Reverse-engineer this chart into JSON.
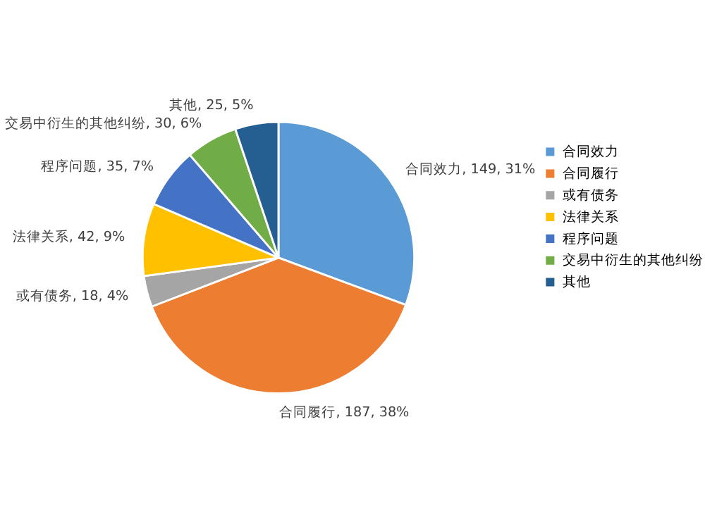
{
  "chart_data": {
    "type": "pie",
    "categories": [
      "合同效力",
      "合同履行",
      "或有债务",
      "法律关系",
      "程序问题",
      "交易中衍生的其他纠纷",
      "其他"
    ],
    "values": [
      149,
      187,
      18,
      42,
      35,
      30,
      25
    ],
    "colors": [
      "#5b9bd5",
      "#ed7d31",
      "#a5a5a5",
      "#ffc000",
      "#4472c4",
      "#70ad47",
      "#255e91"
    ],
    "value_labels": [
      "合同效力, 149, 31%",
      "合同履行, 187, 38%",
      "或有债务, 18, 4%",
      "法律关系, 42, 9%",
      "程序问题, 35, 7%",
      "交易中衍生的其他纠纷, 30, 6%",
      "其他, 25, 5%"
    ],
    "legend": "right"
  }
}
